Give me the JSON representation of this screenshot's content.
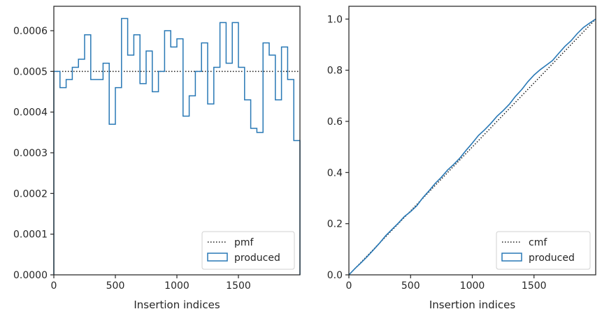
{
  "colors": {
    "produced": "#2878b5",
    "reference": "#1a1a1a",
    "axes": "#262626"
  },
  "chart_data": [
    {
      "type": "line",
      "subtype": "step-histogram",
      "title": "",
      "xlabel": "Insertion indices",
      "ylabel": "",
      "xlim": [
        0,
        2000
      ],
      "ylim": [
        0,
        0.00066
      ],
      "xticks": [
        0,
        500,
        1000,
        1500
      ],
      "xtick_labels": [
        "0",
        "500",
        "1000",
        "1500"
      ],
      "yticks": [
        0,
        0.0001,
        0.0002,
        0.0003,
        0.0004,
        0.0005,
        0.0006
      ],
      "ytick_labels": [
        "0.0000",
        "0.0001",
        "0.0002",
        "0.0003",
        "0.0004",
        "0.0005",
        "0.0006"
      ],
      "grid": false,
      "legend_position": "lower-right",
      "bin_edges": [
        0,
        50,
        100,
        150,
        200,
        250,
        300,
        350,
        400,
        450,
        500,
        550,
        600,
        650,
        700,
        750,
        800,
        850,
        900,
        950,
        1000,
        1050,
        1100,
        1150,
        1200,
        1250,
        1300,
        1350,
        1400,
        1450,
        1500,
        1550,
        1600,
        1650,
        1700,
        1750,
        1800,
        1850,
        1900,
        1950,
        2000
      ],
      "series": [
        {
          "name": "pmf",
          "style": "dotted",
          "values": [
            0.0005,
            0.0005
          ]
        },
        {
          "name": "produced",
          "style": "step",
          "values": [
            0.0005,
            0.00046,
            0.00048,
            0.00051,
            0.00053,
            0.00059,
            0.00048,
            0.00048,
            0.00052,
            0.00037,
            0.00046,
            0.00063,
            0.00054,
            0.00059,
            0.00047,
            0.00055,
            0.00045,
            0.0005,
            0.0006,
            0.00056,
            0.00058,
            0.00039,
            0.00044,
            0.0005,
            0.00057,
            0.00042,
            0.00051,
            0.00062,
            0.00052,
            0.00062,
            0.00051,
            0.00043,
            0.00036,
            0.00035,
            0.00057,
            0.00054,
            0.00043,
            0.00056,
            0.00048,
            0.00033
          ]
        }
      ]
    },
    {
      "type": "line",
      "subtype": "step-cumulative",
      "title": "",
      "xlabel": "Insertion indices",
      "ylabel": "",
      "xlim": [
        0,
        2000
      ],
      "ylim": [
        0,
        1.05
      ],
      "xticks": [
        0,
        500,
        1000,
        1500
      ],
      "xtick_labels": [
        "0",
        "500",
        "1000",
        "1500"
      ],
      "yticks": [
        0,
        0.2,
        0.4,
        0.6,
        0.8,
        1.0
      ],
      "ytick_labels": [
        "0.0",
        "0.2",
        "0.4",
        "0.6",
        "0.8",
        "1.0"
      ],
      "grid": false,
      "legend_position": "lower-right",
      "series": [
        {
          "name": "cmf",
          "style": "dotted",
          "x": [
            0,
            2000
          ],
          "values": [
            0,
            1
          ]
        },
        {
          "name": "produced",
          "style": "step",
          "x": [
            0,
            50,
            100,
            150,
            200,
            250,
            300,
            350,
            400,
            450,
            500,
            550,
            600,
            650,
            700,
            750,
            800,
            850,
            900,
            950,
            1000,
            1050,
            1100,
            1150,
            1200,
            1250,
            1300,
            1350,
            1400,
            1450,
            1500,
            1550,
            1600,
            1650,
            1700,
            1750,
            1800,
            1850,
            1900,
            1950,
            2000
          ],
          "values": [
            0,
            0.025,
            0.048,
            0.072,
            0.098,
            0.125,
            0.154,
            0.178,
            0.202,
            0.228,
            0.247,
            0.27,
            0.302,
            0.329,
            0.358,
            0.382,
            0.41,
            0.432,
            0.457,
            0.487,
            0.515,
            0.545,
            0.567,
            0.592,
            0.62,
            0.642,
            0.667,
            0.698,
            0.724,
            0.755,
            0.781,
            0.802,
            0.82,
            0.838,
            0.866,
            0.893,
            0.915,
            0.943,
            0.967,
            0.984,
            1.0
          ]
        }
      ]
    }
  ]
}
